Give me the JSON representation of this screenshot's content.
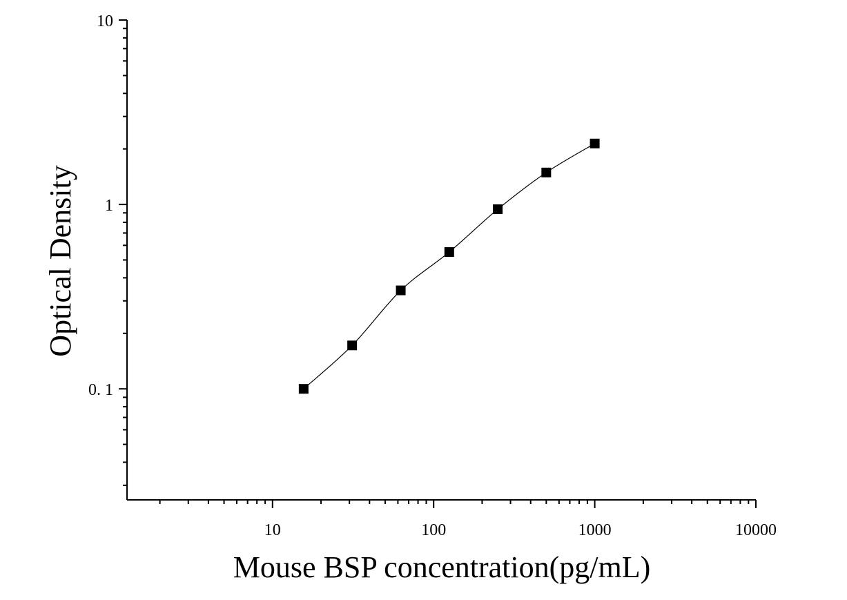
{
  "chart_data": {
    "type": "scatter",
    "title": "",
    "xlabel": "Mouse BSP concentration(pg/mL)",
    "ylabel": "Optical Density",
    "x_scale": "log",
    "y_scale": "log",
    "xlim": [
      1.25,
      10000
    ],
    "ylim": [
      0.025,
      10
    ],
    "x_tick_labels": [
      {
        "value": 10,
        "label": "10"
      },
      {
        "value": 100,
        "label": "100"
      },
      {
        "value": 1000,
        "label": "1000"
      },
      {
        "value": 10000,
        "label": "10000"
      }
    ],
    "y_tick_labels": [
      {
        "value": 0.1,
        "label": "0. 1"
      },
      {
        "value": 1,
        "label": "1"
      },
      {
        "value": 10,
        "label": "10"
      }
    ],
    "grid": false,
    "legend": "none",
    "marker": "square",
    "fit_curve": true,
    "color": "#000000",
    "series": [
      {
        "x": [
          15.6,
          31.2,
          62.5,
          125,
          250,
          500,
          1000
        ],
        "y": [
          0.1,
          0.172,
          0.342,
          0.552,
          0.942,
          1.49,
          2.14
        ]
      }
    ]
  }
}
